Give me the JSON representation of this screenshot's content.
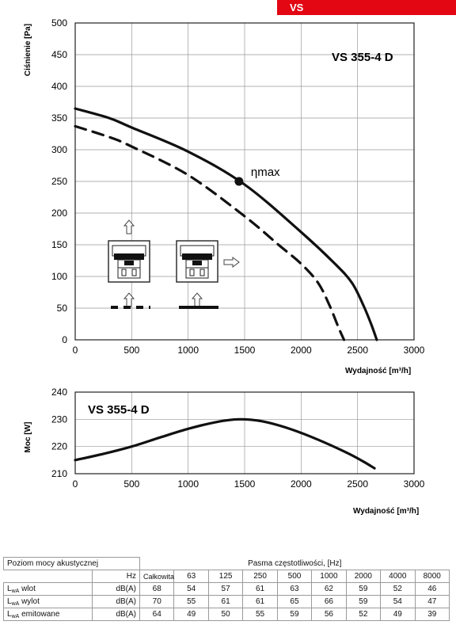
{
  "header": {
    "series_tag": "VS"
  },
  "chart_data": [
    {
      "type": "line",
      "title": "VS 355-4 D",
      "xlabel": "Wydajność [m³/h]",
      "ylabel": "Ciśnienie [Pa]",
      "xlim": [
        0,
        3000
      ],
      "ylim": [
        0,
        500
      ],
      "x_ticks": [
        0,
        500,
        1000,
        1500,
        2000,
        2500,
        3000
      ],
      "y_ticks": [
        0,
        50,
        100,
        150,
        200,
        250,
        300,
        350,
        400,
        450,
        500
      ],
      "grid": true,
      "series": [
        {
          "style": "solid",
          "x": [
            0,
            300,
            500,
            1000,
            1500,
            2000,
            2300,
            2450,
            2550,
            2620,
            2670
          ],
          "y": [
            365,
            350,
            335,
            297,
            245,
            170,
            120,
            90,
            55,
            25,
            0
          ]
        },
        {
          "style": "dashed",
          "x": [
            0,
            300,
            500,
            1000,
            1500,
            1800,
            2000,
            2150,
            2250,
            2330,
            2380
          ],
          "y": [
            337,
            320,
            305,
            260,
            195,
            150,
            120,
            90,
            55,
            20,
            0
          ]
        }
      ],
      "annotations": [
        {
          "label": "ηmax",
          "x": 1450,
          "y": 250
        }
      ],
      "inset_labels": {
        "dashed": "- - -",
        "solid": "——"
      }
    },
    {
      "type": "line",
      "title": "VS 355-4 D",
      "xlabel": "Wydajność [m³/h]",
      "ylabel": "Moc [W]",
      "xlim": [
        0,
        3000
      ],
      "ylim": [
        210,
        240
      ],
      "x_ticks": [
        0,
        500,
        1000,
        1500,
        2000,
        2500,
        3000
      ],
      "y_ticks": [
        210,
        220,
        230,
        240
      ],
      "grid": true,
      "series": [
        {
          "style": "solid",
          "x": [
            0,
            250,
            500,
            750,
            1000,
            1250,
            1450,
            1650,
            1900,
            2150,
            2400,
            2550,
            2650
          ],
          "y": [
            215,
            217.3,
            220,
            223.3,
            226.5,
            229,
            230,
            229.3,
            226.5,
            222.5,
            217.8,
            214.5,
            212
          ]
        }
      ]
    }
  ],
  "table": {
    "title": "Poziom mocy akustycznej",
    "band_header": "Pasma częstotliwości, [Hz]",
    "unit_header": "Hz",
    "columns": [
      "Całkowita",
      "63",
      "125",
      "250",
      "500",
      "1000",
      "2000",
      "4000",
      "8000"
    ],
    "rows": [
      {
        "label": "L",
        "sub": "wA",
        "suffix": " wlot",
        "unit": "dB(A)",
        "values": [
          "68",
          "54",
          "57",
          "61",
          "63",
          "62",
          "59",
          "52",
          "46"
        ]
      },
      {
        "label": "L",
        "sub": "wA",
        "suffix": " wylot",
        "unit": "dB(A)",
        "values": [
          "70",
          "55",
          "61",
          "61",
          "65",
          "66",
          "59",
          "54",
          "47"
        ]
      },
      {
        "label": "L",
        "sub": "wA",
        "suffix": " emitowane",
        "unit": "dB(A)",
        "values": [
          "64",
          "49",
          "50",
          "55",
          "59",
          "56",
          "52",
          "49",
          "39"
        ]
      }
    ]
  }
}
